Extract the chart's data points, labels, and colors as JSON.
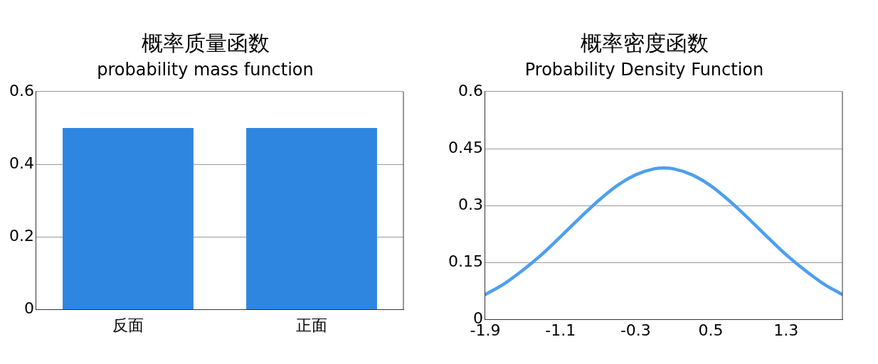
{
  "chart_data": [
    {
      "type": "bar",
      "title": "概率质量函数",
      "subtitle": "probability mass function",
      "categories": [
        "反面",
        "正面"
      ],
      "values": [
        0.5,
        0.5
      ],
      "color": "#2f86e0",
      "ylim": [
        0,
        0.6
      ],
      "yticks": [
        0,
        0.2,
        0.4,
        0.6
      ],
      "grid": "y",
      "legend": false
    },
    {
      "type": "line",
      "title": "概率密度函数",
      "subtitle": "Probability Density Function",
      "x": [
        -1.9,
        -1.7,
        -1.5,
        -1.3,
        -1.1,
        -0.9,
        -0.7,
        -0.5,
        -0.3,
        -0.1,
        0,
        0.1,
        0.3,
        0.5,
        0.7,
        0.9,
        1.1,
        1.3,
        1.5,
        1.7,
        1.9
      ],
      "values": [
        0.066,
        0.094,
        0.13,
        0.171,
        0.218,
        0.266,
        0.312,
        0.352,
        0.381,
        0.397,
        0.399,
        0.397,
        0.381,
        0.352,
        0.312,
        0.266,
        0.218,
        0.171,
        0.13,
        0.094,
        0.066
      ],
      "color": "#4c9fee",
      "xlim": [
        -1.9,
        1.9
      ],
      "xticks": [
        -1.9,
        -1.1,
        -0.3,
        0.5,
        1.3
      ],
      "ylim": [
        0,
        0.6
      ],
      "yticks": [
        0,
        0.15,
        0.3,
        0.45,
        0.6
      ],
      "grid": "y",
      "legend": false,
      "marker": "none",
      "line_style": "solid"
    }
  ]
}
